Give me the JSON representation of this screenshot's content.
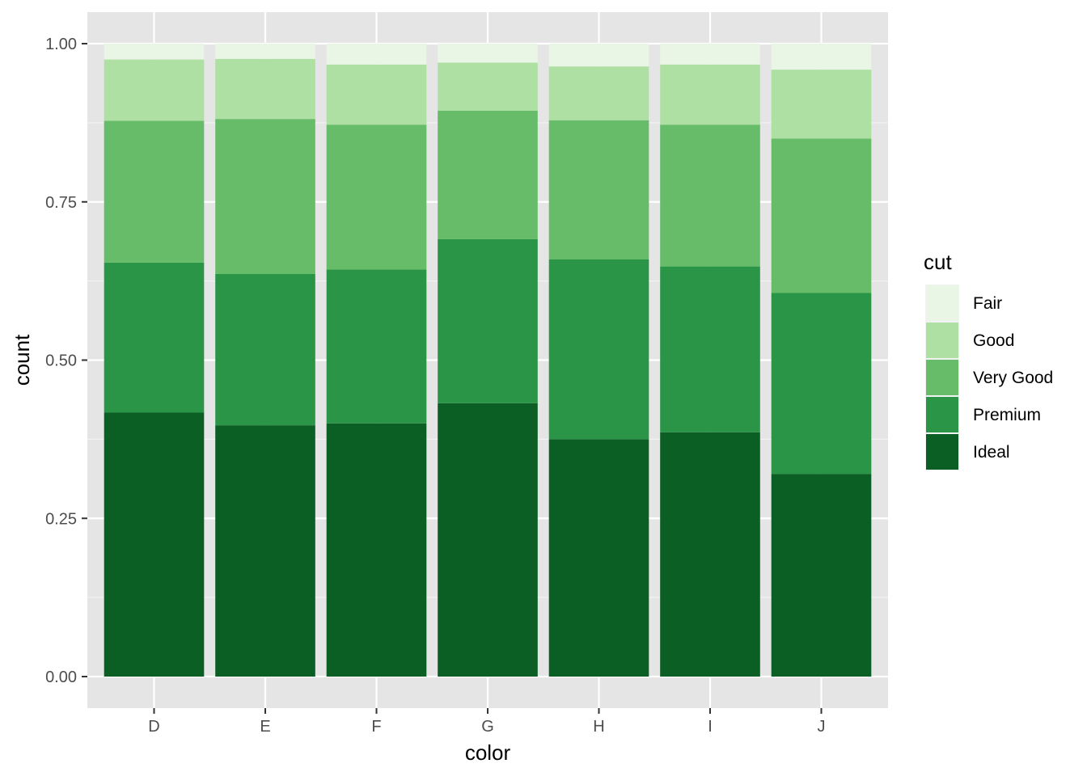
{
  "chart_data": {
    "type": "bar",
    "stacked": true,
    "position": "fill",
    "xlabel": "color",
    "ylabel": "count",
    "ylim": [
      0,
      1
    ],
    "yticks": [
      "0.00",
      "0.25",
      "0.50",
      "0.75",
      "1.00"
    ],
    "categories": [
      "D",
      "E",
      "F",
      "G",
      "H",
      "I",
      "J"
    ],
    "grid": true,
    "legend": {
      "title": "cut",
      "placement": "right",
      "entries": [
        "Fair",
        "Good",
        "Very Good",
        "Premium",
        "Ideal"
      ]
    },
    "series": [
      {
        "name": "Ideal",
        "color": "#0b5e24",
        "values": [
          0.417,
          0.397,
          0.4,
          0.432,
          0.375,
          0.386,
          0.32
        ]
      },
      {
        "name": "Premium",
        "color": "#2a9546",
        "values": [
          0.237,
          0.239,
          0.243,
          0.259,
          0.284,
          0.262,
          0.286
        ]
      },
      {
        "name": "Very Good",
        "color": "#66bc69",
        "values": [
          0.224,
          0.245,
          0.229,
          0.203,
          0.22,
          0.224,
          0.244
        ]
      },
      {
        "name": "Good",
        "color": "#aee0a3",
        "values": [
          0.097,
          0.095,
          0.095,
          0.076,
          0.085,
          0.095,
          0.109
        ]
      },
      {
        "name": "Fair",
        "color": "#eaf6e5",
        "values": [
          0.025,
          0.024,
          0.033,
          0.03,
          0.036,
          0.033,
          0.041
        ]
      }
    ]
  }
}
